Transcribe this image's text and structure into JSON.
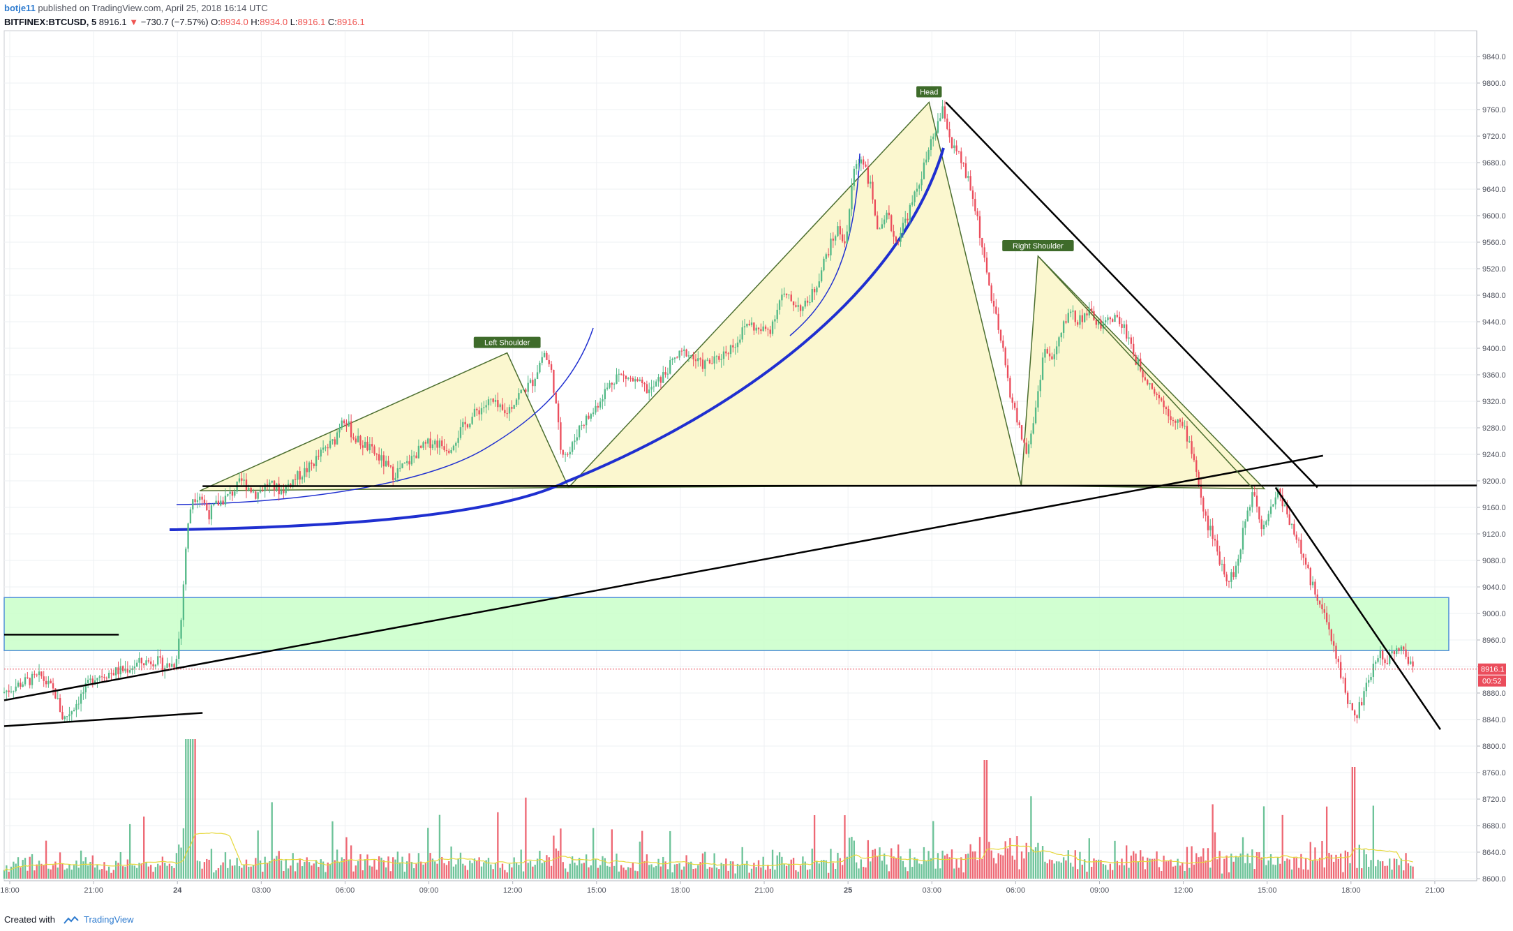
{
  "header": {
    "author": "botje11",
    "published": "published on TradingView.com, April 25, 2018 16:14 UTC",
    "symbol": "BITFINEX:BTCUSD, 5",
    "last": "8916.1",
    "change": "−730.7 (−7.57%)",
    "o_label": "O:",
    "o": "8934.0",
    "h_label": "H:",
    "h": "8934.0",
    "l_label": "L:",
    "l": "8916.1",
    "c_label": "C:",
    "c": "8916.1"
  },
  "footer": {
    "created_with": "Created with",
    "brand": "TradingView"
  },
  "colors": {
    "up": "#26a69a",
    "up_body": "#53b987",
    "down": "#eb4d5c",
    "pattern_fill": "#fbf7cf",
    "pattern_stroke": "#4b6e2f",
    "zone_fill": "#ccffcc",
    "zone_stroke": "#4f8fd8",
    "curve": "#1f2fd0",
    "label_bg": "#3e6b2a"
  },
  "chart_data": {
    "type": "candlestick",
    "symbol": "BITFINEX:BTCUSD",
    "interval": "5",
    "y_ticks": [
      8600,
      8640,
      8680,
      8720,
      8760,
      8800,
      8840,
      8880,
      8920,
      8960,
      9000,
      9040,
      9080,
      9120,
      9160,
      9200,
      9240,
      9280,
      9320,
      9360,
      9400,
      9440,
      9480,
      9520,
      9560,
      9600,
      9640,
      9680,
      9720,
      9760,
      9800,
      9840
    ],
    "ylim": [
      8585,
      9860
    ],
    "x_ticks": [
      "18:00",
      "21:00",
      "24",
      "03:00",
      "06:00",
      "09:00",
      "12:00",
      "15:00",
      "18:00",
      "21:00",
      "25",
      "03:00",
      "06:00",
      "09:00",
      "12:00",
      "15:00",
      "18:00",
      "21:00"
    ],
    "x_tick_hours": [
      -6,
      -3,
      0,
      3,
      6,
      9,
      12,
      15,
      18,
      21,
      24,
      27,
      30,
      33,
      36,
      39,
      42,
      45
    ],
    "x_range_hours": [
      -6.2,
      46.5
    ],
    "last_price": 8916.1,
    "last_price_label": "8916.1",
    "countdown": "00:52",
    "price_path": [
      [
        -6.2,
        8880
      ],
      [
        -5.5,
        8895
      ],
      [
        -4.8,
        8905
      ],
      [
        -4.3,
        8880
      ],
      [
        -4.0,
        8840
      ],
      [
        -3.7,
        8855
      ],
      [
        -3.3,
        8880
      ],
      [
        -2.9,
        8905
      ],
      [
        -2.4,
        8910
      ],
      [
        -1.8,
        8915
      ],
      [
        -1.3,
        8925
      ],
      [
        -0.7,
        8930
      ],
      [
        -0.4,
        8920
      ],
      [
        0,
        8925
      ],
      [
        0.2,
        8980
      ],
      [
        0.4,
        9110
      ],
      [
        0.6,
        9175
      ],
      [
        0.9,
        9180
      ],
      [
        1.2,
        9150
      ],
      [
        1.5,
        9165
      ],
      [
        2.0,
        9180
      ],
      [
        2.4,
        9200
      ],
      [
        2.9,
        9180
      ],
      [
        3.3,
        9195
      ],
      [
        3.8,
        9185
      ],
      [
        4.2,
        9200
      ],
      [
        4.8,
        9220
      ],
      [
        5.3,
        9245
      ],
      [
        5.7,
        9260
      ],
      [
        6.0,
        9300
      ],
      [
        6.4,
        9265
      ],
      [
        6.9,
        9250
      ],
      [
        7.3,
        9235
      ],
      [
        7.8,
        9210
      ],
      [
        8.3,
        9225
      ],
      [
        8.7,
        9245
      ],
      [
        9.2,
        9260
      ],
      [
        9.8,
        9250
      ],
      [
        10.3,
        9280
      ],
      [
        10.8,
        9305
      ],
      [
        11.3,
        9320
      ],
      [
        11.8,
        9300
      ],
      [
        12.3,
        9330
      ],
      [
        12.8,
        9350
      ],
      [
        13.2,
        9395
      ],
      [
        13.5,
        9360
      ],
      [
        13.8,
        9250
      ],
      [
        14.1,
        9240
      ],
      [
        14.5,
        9285
      ],
      [
        14.9,
        9300
      ],
      [
        15.3,
        9330
      ],
      [
        15.8,
        9360
      ],
      [
        16.2,
        9355
      ],
      [
        16.6,
        9345
      ],
      [
        17.0,
        9335
      ],
      [
        17.5,
        9360
      ],
      [
        17.9,
        9385
      ],
      [
        18.3,
        9395
      ],
      [
        18.8,
        9375
      ],
      [
        19.3,
        9380
      ],
      [
        19.7,
        9395
      ],
      [
        20.1,
        9410
      ],
      [
        20.5,
        9440
      ],
      [
        20.9,
        9425
      ],
      [
        21.3,
        9430
      ],
      [
        21.7,
        9480
      ],
      [
        22.1,
        9470
      ],
      [
        22.5,
        9460
      ],
      [
        22.9,
        9490
      ],
      [
        23.3,
        9540
      ],
      [
        23.7,
        9580
      ],
      [
        24.0,
        9560
      ],
      [
        24.3,
        9670
      ],
      [
        24.6,
        9690
      ],
      [
        24.9,
        9640
      ],
      [
        25.2,
        9570
      ],
      [
        25.5,
        9600
      ],
      [
        25.8,
        9560
      ],
      [
        26.1,
        9590
      ],
      [
        26.4,
        9620
      ],
      [
        26.7,
        9660
      ],
      [
        27.0,
        9700
      ],
      [
        27.3,
        9740
      ],
      [
        27.5,
        9760
      ],
      [
        27.8,
        9705
      ],
      [
        28.1,
        9685
      ],
      [
        28.4,
        9650
      ],
      [
        28.7,
        9600
      ],
      [
        29.0,
        9520
      ],
      [
        29.3,
        9460
      ],
      [
        29.6,
        9400
      ],
      [
        29.9,
        9330
      ],
      [
        30.2,
        9280
      ],
      [
        30.5,
        9240
      ],
      [
        30.8,
        9310
      ],
      [
        31.1,
        9400
      ],
      [
        31.4,
        9380
      ],
      [
        31.7,
        9420
      ],
      [
        32.0,
        9460
      ],
      [
        32.3,
        9440
      ],
      [
        32.6,
        9455
      ],
      [
        32.9,
        9445
      ],
      [
        33.2,
        9430
      ],
      [
        33.5,
        9450
      ],
      [
        33.8,
        9440
      ],
      [
        34.1,
        9420
      ],
      [
        34.4,
        9380
      ],
      [
        34.7,
        9360
      ],
      [
        35.0,
        9340
      ],
      [
        35.3,
        9320
      ],
      [
        35.6,
        9300
      ],
      [
        35.9,
        9290
      ],
      [
        36.2,
        9270
      ],
      [
        36.5,
        9230
      ],
      [
        36.8,
        9150
      ],
      [
        37.1,
        9120
      ],
      [
        37.4,
        9080
      ],
      [
        37.7,
        9050
      ],
      [
        38.0,
        9070
      ],
      [
        38.3,
        9140
      ],
      [
        38.6,
        9190
      ],
      [
        38.9,
        9130
      ],
      [
        39.2,
        9160
      ],
      [
        39.5,
        9185
      ],
      [
        39.8,
        9150
      ],
      [
        40.1,
        9120
      ],
      [
        40.4,
        9080
      ],
      [
        40.7,
        9040
      ],
      [
        41.0,
        9020
      ],
      [
        41.3,
        8970
      ],
      [
        41.6,
        8930
      ],
      [
        41.9,
        8880
      ],
      [
        42.2,
        8840
      ],
      [
        42.5,
        8870
      ],
      [
        42.8,
        8910
      ],
      [
        43.1,
        8940
      ],
      [
        43.4,
        8930
      ],
      [
        43.7,
        8950
      ],
      [
        44.0,
        8940
      ],
      [
        44.3,
        8916.1
      ]
    ],
    "annotations": [
      {
        "text": "Left Shoulder",
        "hour": 11.8,
        "price": 9393
      },
      {
        "text": "Head",
        "hour": 26.9,
        "price": 9771
      },
      {
        "text": "Right Shoulder",
        "hour": 30.8,
        "price": 9539
      }
    ],
    "pattern_points": [
      [
        0.8,
        9185
      ],
      [
        11.8,
        9393
      ],
      [
        14.0,
        9190
      ],
      [
        26.9,
        9771
      ],
      [
        30.2,
        9193
      ],
      [
        30.8,
        9539
      ],
      [
        38.9,
        9188
      ]
    ],
    "zones": [
      {
        "h0": -6.2,
        "h1": 45.5,
        "p_low": 8944,
        "p_high": 9024
      },
      {
        "h0": 21.0,
        "h1": 28.3,
        "p_low": 9428,
        "p_high": 9450
      }
    ],
    "lines": [
      {
        "h0": 0.9,
        "p0": 9192,
        "h1": 46.5,
        "p1": 9193
      },
      {
        "h0": -6.2,
        "p0": 8869,
        "h1": 41.0,
        "p1": 9238
      },
      {
        "h0": -6.2,
        "p0": 8830,
        "h1": 0.9,
        "p1": 8850
      },
      {
        "h0": -6.2,
        "p0": 8968,
        "h1": -2.1,
        "p1": 8968
      },
      {
        "h0": 27.5,
        "p0": 9771,
        "h1": 40.8,
        "p1": 9190
      },
      {
        "h0": 39.3,
        "p0": 9190,
        "h1": 45.2,
        "p1": 8825
      },
      {
        "h0": 30.8,
        "p0": 9539,
        "h1": 38.5,
        "p1": 9188
      }
    ]
  }
}
